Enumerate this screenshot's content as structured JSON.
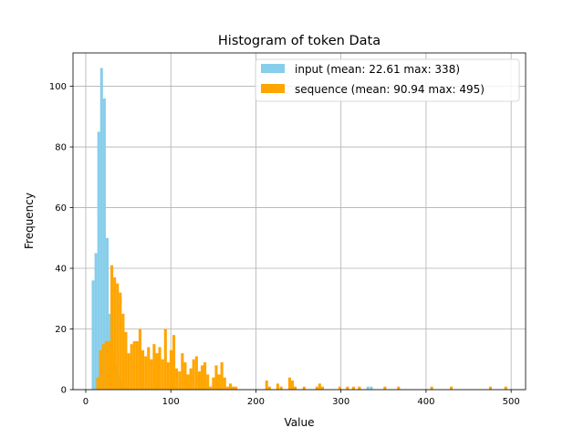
{
  "chart_data": {
    "type": "bar",
    "title": "Histogram of token Data",
    "xlabel": "Value",
    "ylabel": "Frequency",
    "xlim": [
      -15,
      517
    ],
    "ylim": [
      0,
      111
    ],
    "xticks": [
      0,
      100,
      200,
      300,
      400,
      500
    ],
    "yticks": [
      0,
      20,
      40,
      60,
      80,
      100
    ],
    "grid": true,
    "legend_position": "top-right",
    "series": [
      {
        "name": "input (mean: 22.61 max: 338)",
        "color": "#87ceeb",
        "bin_width": 3.32,
        "bins": [
          [
            7,
            36
          ],
          [
            10.3,
            45
          ],
          [
            13.6,
            85
          ],
          [
            16.9,
            106
          ],
          [
            20.2,
            96
          ],
          [
            23.6,
            50
          ],
          [
            26.9,
            25
          ],
          [
            30.2,
            12
          ],
          [
            33.5,
            8
          ],
          [
            36.8,
            5
          ],
          [
            40.1,
            3
          ],
          [
            43.4,
            2
          ],
          [
            46.8,
            1
          ],
          [
            330,
            1
          ],
          [
            334,
            1
          ]
        ]
      },
      {
        "name": "sequence (mean: 90.94 max: 495)",
        "color": "#ffa500",
        "bin_width": 3.32,
        "bins": [
          [
            12.4,
            4
          ],
          [
            15.7,
            13
          ],
          [
            19,
            15
          ],
          [
            22.3,
            16
          ],
          [
            25.7,
            16
          ],
          [
            29,
            41
          ],
          [
            32.3,
            37
          ],
          [
            35.6,
            35
          ],
          [
            38.9,
            32
          ],
          [
            42.2,
            25
          ],
          [
            45.5,
            19
          ],
          [
            48.9,
            12
          ],
          [
            52.2,
            15
          ],
          [
            55.5,
            16
          ],
          [
            58.8,
            16
          ],
          [
            62.1,
            20
          ],
          [
            65.4,
            13
          ],
          [
            68.8,
            11
          ],
          [
            72.1,
            14
          ],
          [
            75.4,
            10
          ],
          [
            78.7,
            15
          ],
          [
            82,
            12
          ],
          [
            85.3,
            14
          ],
          [
            88.7,
            10
          ],
          [
            92,
            20
          ],
          [
            95.3,
            9
          ],
          [
            98.6,
            13
          ],
          [
            101.9,
            18
          ],
          [
            105.2,
            7
          ],
          [
            108.6,
            6
          ],
          [
            111.9,
            12
          ],
          [
            115.2,
            9
          ],
          [
            118.5,
            5
          ],
          [
            121.8,
            7
          ],
          [
            125.1,
            10
          ],
          [
            128.5,
            11
          ],
          [
            131.8,
            6
          ],
          [
            135.1,
            8
          ],
          [
            138.4,
            9
          ],
          [
            141.7,
            5
          ],
          [
            145,
            1
          ],
          [
            148.4,
            4
          ],
          [
            151.7,
            8
          ],
          [
            155,
            5
          ],
          [
            158.3,
            9
          ],
          [
            161.6,
            4
          ],
          [
            164.9,
            1
          ],
          [
            168.3,
            2
          ],
          [
            171.6,
            1
          ],
          [
            174.9,
            1
          ],
          [
            211,
            3
          ],
          [
            214.3,
            1
          ],
          [
            224,
            2
          ],
          [
            228,
            1
          ],
          [
            238,
            4
          ],
          [
            241.3,
            3
          ],
          [
            244.6,
            1
          ],
          [
            255,
            1
          ],
          [
            270,
            1
          ],
          [
            273.3,
            2
          ],
          [
            276.6,
            1
          ],
          [
            297,
            1
          ],
          [
            306,
            1
          ],
          [
            313,
            1
          ],
          [
            320,
            1
          ],
          [
            350,
            1
          ],
          [
            366,
            1
          ],
          [
            405,
            1
          ],
          [
            428,
            1
          ],
          [
            474,
            1
          ],
          [
            492,
            1
          ]
        ]
      }
    ]
  }
}
